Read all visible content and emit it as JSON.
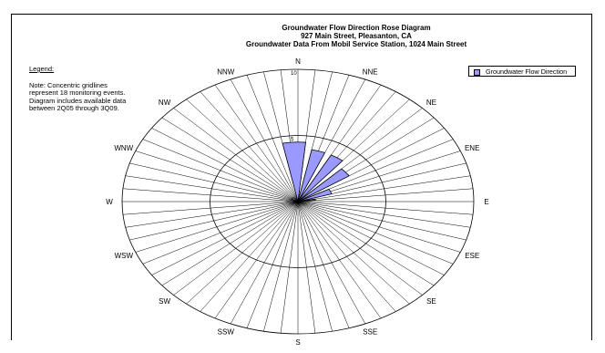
{
  "chart_data": {
    "type": "radar",
    "title": "Groundwater Flow Direction Rose Diagram",
    "subtitle_lines": [
      "927 Main Street, Pleasanton, CA",
      "Groundwater Data From Mobil Service Station, 1024 Main Street"
    ],
    "categories": [
      "N",
      "NNE",
      "NE",
      "ENE",
      "E",
      "ESE",
      "SE",
      "SSE",
      "S",
      "SSW",
      "SW",
      "WSW",
      "W",
      "WNW",
      "NW",
      "NNW"
    ],
    "radial_range": [
      0,
      10
    ],
    "ring_values": [
      5,
      10
    ],
    "ring_labels": [
      "5",
      "10"
    ],
    "sectors_per_direction": 4,
    "series": [
      {
        "name": "Groundwater Flow Direction",
        "color": "#9999ff",
        "bins": [
          {
            "start_deg": 348.75,
            "end_deg": 5.625,
            "value": 4.5
          },
          {
            "start_deg": 11.25,
            "end_deg": 22.5,
            "value": 4.0
          },
          {
            "start_deg": 28.125,
            "end_deg": 39.375,
            "value": 4.0
          },
          {
            "start_deg": 45.0,
            "end_deg": 56.25,
            "value": 3.5
          },
          {
            "start_deg": 61.875,
            "end_deg": 73.125,
            "value": 2.0
          },
          {
            "start_deg": 78.75,
            "end_deg": 84.375,
            "value": 1.0
          },
          {
            "start_deg": 300.0,
            "end_deg": 318.0,
            "value": 0.4
          }
        ]
      }
    ],
    "legend": {
      "label": "Groundwater Flow Direction",
      "position": "top-right"
    }
  },
  "notes": {
    "legend_heading": "Legend:",
    "note_text": "Note: Concentric gridlines represent 18 monitoring events.  Diagram includes available data between 2Q05 through 3Q09."
  }
}
